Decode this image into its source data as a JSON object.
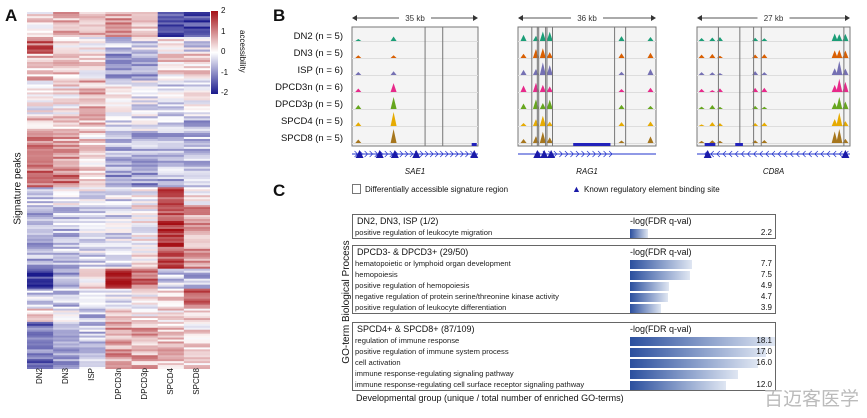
{
  "panel_labels": {
    "a": "A",
    "b": "B",
    "c": "C"
  },
  "chart_data": [
    {
      "type": "heatmap",
      "ylabel": "Signature peaks",
      "categories": [
        "DN2",
        "DN3",
        "ISP",
        "DPCD3n",
        "DPCD3p",
        "SPCD4",
        "SPCD8"
      ],
      "colorbar": {
        "label": "accessibility",
        "ticks": [
          "2",
          "1",
          "0",
          "-1",
          "-2"
        ],
        "range": [
          -2,
          2
        ],
        "colors": {
          "high": "#a50f15",
          "mid": "#ffffff",
          "low": "#1a1a8c"
        }
      },
      "row_blocks": [
        {
          "share": 0.07,
          "values": [
            0.3,
            0.6,
            0.5,
            0.8,
            0.3,
            -1.5,
            -1.6
          ]
        },
        {
          "share": 0.047,
          "values": [
            1.3,
            0.1,
            0,
            -0.4,
            -0.3,
            0.2,
            -0.3
          ]
        },
        {
          "share": 0.075,
          "values": [
            0.5,
            0.4,
            0.2,
            -0.8,
            -0.8,
            0.3,
            0.3
          ]
        },
        {
          "share": 0.1,
          "values": [
            0,
            0.2,
            0.6,
            0,
            -0.2,
            -0.3,
            -0.1
          ]
        },
        {
          "share": 0.047,
          "values": [
            0.6,
            0.5,
            0.5,
            -0.3,
            -0.3,
            -0.5,
            -0.7
          ]
        },
        {
          "share": 0.1,
          "values": [
            1.0,
            0.8,
            0.3,
            -0.6,
            -0.7,
            -0.6,
            -0.5
          ]
        },
        {
          "share": 0.052,
          "values": [
            1.1,
            1.1,
            0.5,
            -0.8,
            -0.9,
            -0.6,
            -0.5
          ]
        },
        {
          "share": 0.05,
          "values": [
            -0.4,
            -0.2,
            -0.1,
            -0.3,
            0,
            1.3,
            0.1
          ]
        },
        {
          "share": 0.178,
          "values": [
            -0.6,
            -0.5,
            -0.3,
            -0.3,
            0.1,
            1.5,
            0.8
          ]
        },
        {
          "share": 0.056,
          "values": [
            -1.6,
            -0.7,
            0.3,
            1.8,
            1.2,
            -0.4,
            -0.6
          ]
        },
        {
          "share": 0.056,
          "values": [
            -0.4,
            -0.5,
            -0.4,
            -0.3,
            0.1,
            0.5,
            1.2
          ]
        },
        {
          "share": 0.037,
          "values": [
            0.3,
            -0.1,
            -0.5,
            0.2,
            0.2,
            0.3,
            0.3
          ]
        },
        {
          "share": 0.132,
          "values": [
            -1.2,
            -0.8,
            -0.5,
            0.8,
            0.7,
            0.5,
            0.2
          ]
        }
      ]
    },
    {
      "type": "genome-tracks",
      "samples": [
        {
          "label": "DN2 (n = 5)",
          "color": "#1b9e77"
        },
        {
          "label": "DN3 (n = 5)",
          "color": "#d95f02"
        },
        {
          "label": "ISP (n = 6)",
          "color": "#7570b3"
        },
        {
          "label": "DPCD3n (n = 6)",
          "color": "#e7298a"
        },
        {
          "label": "DPCD3p (n = 5)",
          "color": "#66a61e"
        },
        {
          "label": "SPCD4 (n = 5)",
          "color": "#e6ab02"
        },
        {
          "label": "SPCD8 (n = 5)",
          "color": "#a6761d"
        }
      ],
      "loci": [
        {
          "gene": "SAE1",
          "span": "35 kb",
          "strand": "+"
        },
        {
          "gene": "RAG1",
          "span": "36 kb",
          "strand": "+"
        },
        {
          "gene": "CD8A",
          "span": "27 kb",
          "strand": "-"
        }
      ],
      "legend": {
        "box": "Differentially accessible signature region",
        "triangle": "Known regulatory element binding site",
        "triangle_color": "#1a1aa8"
      }
    },
    {
      "type": "bar",
      "ylabel": "GO-term Biological Process",
      "xlabel": "Developmental group (unique / total number of enriched GO-terms)",
      "value_header": "-log(FDR q-val)",
      "groups": [
        {
          "title": "DN2, DN3, ISP (1/2)",
          "terms": [
            {
              "label": "positive regulation of leukocyte migration",
              "value": 2.2,
              "value_label": "2.2"
            }
          ]
        },
        {
          "title": "DPCD3- & DPCD3+ (29/50)",
          "terms": [
            {
              "label": "hematopoietic or lymphoid organ development",
              "value": 7.7,
              "value_label": "7.7"
            },
            {
              "label": "hemopoiesis",
              "value": 7.5,
              "value_label": "7.5"
            },
            {
              "label": "positive regulation of hemopoiesis",
              "value": 4.9,
              "value_label": "4.9"
            },
            {
              "label": "negative regulation of protein serine/threonine kinase activity",
              "value": 4.7,
              "value_label": "4.7"
            },
            {
              "label": "positive regulation of leukocyte differentiation",
              "value": 3.9,
              "value_label": "3.9"
            }
          ]
        },
        {
          "title": "SPCD4+ & SPCD8+ (87/109)",
          "terms": [
            {
              "label": "regulation of immune response",
              "value": 18.1,
              "value_label": "18.1"
            },
            {
              "label": "positive regulation of immune system process",
              "value": 17.0,
              "value_label": "17.0"
            },
            {
              "label": "cell activation",
              "value": 16.0,
              "value_label": "16.0"
            },
            {
              "label": "immune response-regulating signaling pathway",
              "value": 13.5,
              "value_label": ""
            },
            {
              "label": "immune response-regulating cell surface receptor signaling pathway",
              "value": 12.0,
              "value_label": "12.0"
            }
          ]
        }
      ]
    }
  ],
  "watermark": {
    "text": "百迈客医学"
  }
}
